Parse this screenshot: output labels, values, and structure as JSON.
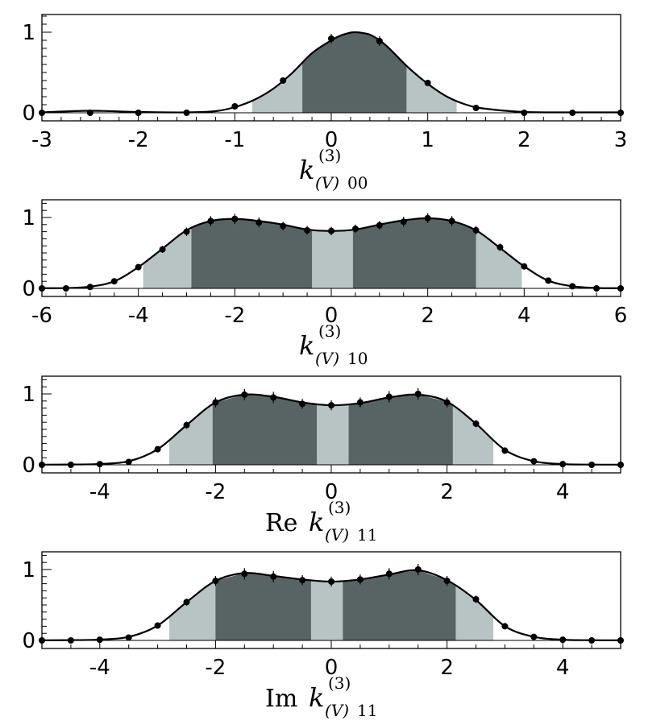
{
  "chart_data": [
    {
      "type": "line",
      "xlabel": {
        "prefix": "",
        "symbol": "k",
        "sup": "(3)",
        "sub_italic": "(V)",
        "sub_tail": "00"
      },
      "xlim": [
        -3,
        3
      ],
      "ylim": [
        0,
        1
      ],
      "xticks": [
        -3,
        -2,
        -1,
        0,
        1,
        2,
        3
      ],
      "xtick_labels": [
        "-3",
        "-2",
        "-1",
        "0",
        "1",
        "2",
        "3"
      ],
      "yticks": [
        0,
        1
      ],
      "ytick_labels": [
        "0",
        "1"
      ],
      "outer_band": [
        [
          -0.82,
          1.3
        ]
      ],
      "inner_band": [
        [
          -0.3,
          0.78
        ]
      ],
      "colors": {
        "outer_band": "#b7c4c3",
        "inner_band": "#586463",
        "curve": "#000000"
      },
      "points": {
        "x": [
          -3,
          -2.5,
          -2,
          -1.5,
          -1,
          -0.5,
          0,
          0.5,
          1,
          1.5,
          2,
          2.5,
          3
        ],
        "y": [
          0,
          0,
          0,
          0,
          0.08,
          0.4,
          0.92,
          0.89,
          0.37,
          0.06,
          0,
          0,
          0
        ],
        "yerr": [
          0,
          0,
          0,
          0,
          0.01,
          0.03,
          0.06,
          0.06,
          0.03,
          0.01,
          0,
          0,
          0
        ]
      },
      "curve": {
        "x": [
          -3,
          -2.5,
          -2,
          -1.5,
          -1.2,
          -1,
          -0.8,
          -0.6,
          -0.4,
          -0.2,
          0,
          0.1,
          0.2,
          0.25,
          0.3,
          0.4,
          0.5,
          0.6,
          0.8,
          1,
          1.2,
          1.4,
          1.6,
          2,
          2.5,
          3
        ],
        "y": [
          0.005,
          0.025,
          0.01,
          0.005,
          0.02,
          0.07,
          0.16,
          0.3,
          0.5,
          0.74,
          0.9,
          0.96,
          0.995,
          1.0,
          0.995,
          0.97,
          0.9,
          0.8,
          0.56,
          0.36,
          0.2,
          0.1,
          0.05,
          0.01,
          0.005,
          0.005
        ]
      }
    },
    {
      "type": "line",
      "xlabel": {
        "prefix": "",
        "symbol": "k",
        "sup": "(3)",
        "sub_italic": "(V)",
        "sub_tail": "10"
      },
      "xlim": [
        -6,
        6
      ],
      "ylim": [
        0,
        1
      ],
      "xticks": [
        -6,
        -4,
        -2,
        0,
        2,
        4,
        6
      ],
      "xtick_labels": [
        "-6",
        "-4",
        "-2",
        "0",
        "2",
        "4",
        "6"
      ],
      "yticks": [
        0,
        1
      ],
      "ytick_labels": [
        "0",
        "1"
      ],
      "outer_band": [
        [
          -3.9,
          3.95
        ]
      ],
      "inner_band": [
        [
          -2.9,
          -0.4
        ],
        [
          0.45,
          3.0
        ]
      ],
      "colors": {
        "outer_band": "#b7c4c3",
        "inner_band": "#586463",
        "curve": "#000000"
      },
      "points": {
        "x": [
          -6,
          -5.5,
          -5,
          -4.5,
          -4,
          -3.5,
          -3,
          -2.5,
          -2,
          -1.5,
          -1,
          -0.5,
          0,
          0.5,
          1,
          1.5,
          2,
          2.5,
          3,
          3.5,
          4,
          4.5,
          5,
          5.5,
          6
        ],
        "y": [
          0,
          0,
          0.02,
          0.1,
          0.3,
          0.55,
          0.8,
          0.95,
          0.98,
          0.93,
          0.88,
          0.82,
          0.81,
          0.84,
          0.89,
          0.94,
          0.99,
          0.95,
          0.82,
          0.58,
          0.31,
          0.11,
          0.03,
          0,
          0
        ],
        "yerr": [
          0,
          0,
          0.01,
          0.02,
          0.03,
          0.05,
          0.06,
          0.07,
          0.07,
          0.07,
          0.06,
          0.06,
          0.06,
          0.06,
          0.06,
          0.07,
          0.07,
          0.07,
          0.06,
          0.05,
          0.03,
          0.02,
          0.01,
          0,
          0
        ]
      },
      "curve": {
        "x": [
          -6,
          -5.5,
          -5,
          -4.5,
          -4,
          -3.5,
          -3,
          -2.5,
          -2,
          -1.5,
          -1,
          -0.5,
          0,
          0.5,
          1,
          1.5,
          2,
          2.5,
          3,
          3.5,
          4,
          4.5,
          5,
          5.5,
          6
        ],
        "y": [
          0.003,
          0.005,
          0.025,
          0.1,
          0.3,
          0.56,
          0.82,
          0.95,
          0.98,
          0.95,
          0.9,
          0.83,
          0.81,
          0.83,
          0.9,
          0.96,
          0.99,
          0.95,
          0.82,
          0.57,
          0.31,
          0.11,
          0.03,
          0.006,
          0.003
        ]
      }
    },
    {
      "type": "line",
      "xlabel": {
        "prefix": "Re",
        "symbol": "k",
        "sup": "(3)",
        "sub_italic": "(V)",
        "sub_tail": "11"
      },
      "xlim": [
        -5,
        5
      ],
      "ylim": [
        0,
        1
      ],
      "xticks": [
        -4,
        -2,
        0,
        2,
        4
      ],
      "xtick_labels": [
        "-4",
        "-2",
        "0",
        "2",
        "4"
      ],
      "yticks": [
        0,
        1
      ],
      "ytick_labels": [
        "0",
        "1"
      ],
      "outer_band": [
        [
          -2.8,
          2.8
        ]
      ],
      "inner_band": [
        [
          -2.05,
          -0.25
        ],
        [
          0.3,
          2.1
        ]
      ],
      "colors": {
        "outer_band": "#b7c4c3",
        "inner_band": "#586463",
        "curve": "#000000"
      },
      "points": {
        "x": [
          -5,
          -4.5,
          -4,
          -3.5,
          -3,
          -2.5,
          -2,
          -1.5,
          -1,
          -0.5,
          0,
          0.5,
          1,
          1.5,
          2,
          2.5,
          3,
          3.5,
          4,
          4.5,
          5
        ],
        "y": [
          0,
          0,
          0.01,
          0.04,
          0.22,
          0.56,
          0.88,
          0.99,
          0.95,
          0.86,
          0.84,
          0.88,
          0.96,
          1.0,
          0.88,
          0.58,
          0.2,
          0.05,
          0.01,
          0,
          0
        ],
        "yerr": [
          0,
          0,
          0.005,
          0.01,
          0.03,
          0.05,
          0.07,
          0.08,
          0.08,
          0.07,
          0.07,
          0.07,
          0.08,
          0.08,
          0.07,
          0.05,
          0.03,
          0.01,
          0.005,
          0,
          0
        ]
      },
      "curve": {
        "x": [
          -5,
          -4.5,
          -4,
          -3.5,
          -3,
          -2.5,
          -2,
          -1.5,
          -1,
          -0.5,
          0,
          0.5,
          1,
          1.5,
          2,
          2.5,
          3,
          3.5,
          4,
          4.5,
          5
        ],
        "y": [
          0.002,
          0.004,
          0.012,
          0.05,
          0.22,
          0.56,
          0.88,
          0.99,
          0.96,
          0.88,
          0.84,
          0.87,
          0.95,
          0.99,
          0.89,
          0.58,
          0.21,
          0.05,
          0.01,
          0.003,
          0.002
        ]
      }
    },
    {
      "type": "line",
      "xlabel": {
        "prefix": "Im",
        "symbol": "k",
        "sup": "(3)",
        "sub_italic": "(V)",
        "sub_tail": "11"
      },
      "xlim": [
        -5,
        5
      ],
      "ylim": [
        0,
        1
      ],
      "xticks": [
        -4,
        -2,
        0,
        2,
        4
      ],
      "xtick_labels": [
        "-4",
        "-2",
        "0",
        "2",
        "4"
      ],
      "yticks": [
        0,
        1
      ],
      "ytick_labels": [
        "0",
        "1"
      ],
      "outer_band": [
        [
          -2.8,
          2.8
        ]
      ],
      "inner_band": [
        [
          -2.0,
          -0.35
        ],
        [
          0.2,
          2.15
        ]
      ],
      "colors": {
        "outer_band": "#b7c4c3",
        "inner_band": "#586463",
        "curve": "#000000"
      },
      "points": {
        "x": [
          -5,
          -4.5,
          -4,
          -3.5,
          -3,
          -2.5,
          -2,
          -1.5,
          -1,
          -0.5,
          0,
          0.5,
          1,
          1.5,
          2,
          2.5,
          3,
          3.5,
          4,
          4.5,
          5
        ],
        "y": [
          0,
          0,
          0.01,
          0.04,
          0.21,
          0.54,
          0.84,
          0.94,
          0.9,
          0.85,
          0.83,
          0.86,
          0.94,
          1.0,
          0.84,
          0.58,
          0.2,
          0.05,
          0.01,
          0,
          0
        ],
        "yerr": [
          0,
          0,
          0.005,
          0.01,
          0.03,
          0.05,
          0.07,
          0.08,
          0.08,
          0.07,
          0.07,
          0.07,
          0.08,
          0.08,
          0.07,
          0.05,
          0.03,
          0.01,
          0.005,
          0,
          0
        ]
      },
      "curve": {
        "x": [
          -5,
          -4.5,
          -4,
          -3.5,
          -3,
          -2.5,
          -2,
          -1.5,
          -1,
          -0.5,
          0,
          0.5,
          1,
          1.5,
          2,
          2.5,
          3,
          3.5,
          4,
          4.5,
          5
        ],
        "y": [
          0.002,
          0.004,
          0.012,
          0.05,
          0.21,
          0.54,
          0.84,
          0.95,
          0.91,
          0.86,
          0.83,
          0.86,
          0.93,
          0.99,
          0.85,
          0.57,
          0.2,
          0.05,
          0.01,
          0.003,
          0.002
        ]
      }
    }
  ]
}
